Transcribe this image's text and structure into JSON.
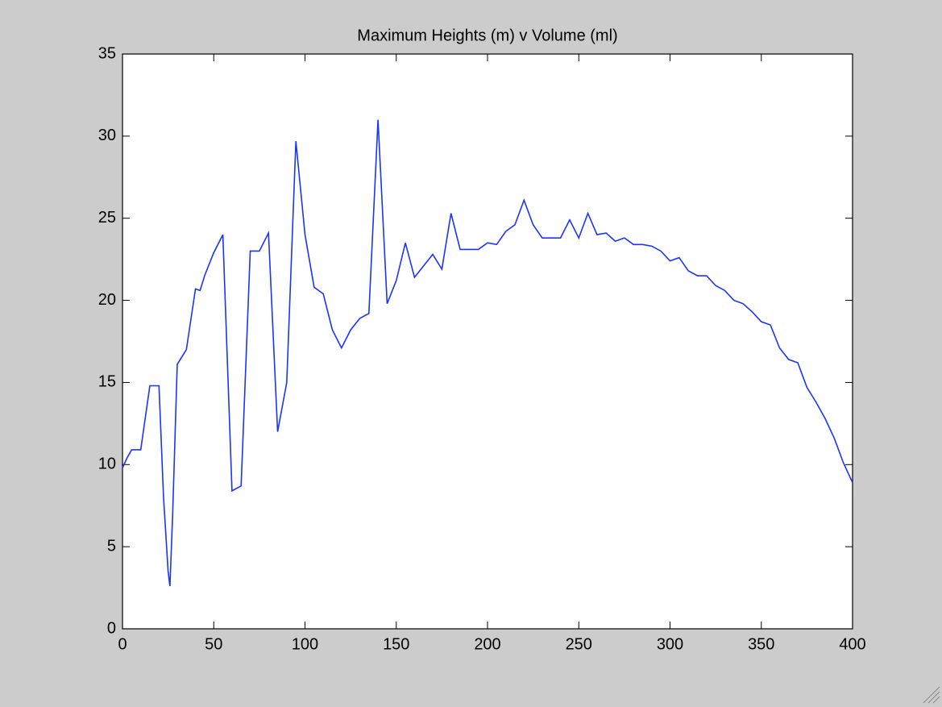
{
  "chart_data": {
    "type": "line",
    "title": "Maximum Heights (m) v Volume (ml)",
    "x": [
      0,
      2.5,
      5,
      10,
      15,
      20,
      22.5,
      25,
      26,
      27.5,
      30,
      35,
      40,
      42.5,
      45,
      50,
      55,
      60,
      65,
      70,
      75,
      80,
      85,
      90,
      95,
      100,
      105,
      110,
      115,
      120,
      125,
      130,
      135,
      140,
      145,
      150,
      155,
      160,
      165,
      170,
      175,
      180,
      185,
      190,
      195,
      200,
      205,
      210,
      215,
      220,
      225,
      230,
      235,
      240,
      245,
      250,
      255,
      260,
      265,
      270,
      275,
      280,
      285,
      290,
      295,
      300,
      305,
      310,
      315,
      320,
      325,
      330,
      335,
      340,
      345,
      350,
      355,
      360,
      365,
      370,
      375,
      380,
      385,
      390,
      395,
      400
    ],
    "series": [
      {
        "name": "Maximum Height",
        "color": "#1a33ff",
        "values": [
          9.8,
          10.4,
          10.9,
          10.9,
          14.8,
          14.8,
          8,
          3.5,
          2.6,
          7,
          16.1,
          17,
          20.7,
          20.6,
          21.5,
          22.9,
          24,
          8.4,
          8.7,
          23,
          23,
          24.1,
          12,
          15,
          29.7,
          24,
          20.8,
          20.4,
          18.2,
          17.1,
          18.2,
          18.9,
          19.2,
          31,
          19.8,
          21.2,
          23.5,
          21.4,
          22.1,
          22.8,
          21.9,
          25.3,
          23.1,
          23.1,
          23.1,
          23.5,
          23.4,
          24.2,
          24.6,
          26.1,
          24.6,
          23.8,
          23.8,
          23.8,
          24.9,
          23.8,
          25.3,
          24,
          24.1,
          23.6,
          23.8,
          23.4,
          23.4,
          23.3,
          23,
          22.4,
          22.6,
          21.8,
          21.5,
          21.5,
          20.9,
          20.6,
          20,
          19.8,
          19.3,
          18.7,
          18.5,
          17.1,
          16.4,
          16.2,
          14.7,
          13.8,
          12.8,
          11.6,
          10.1,
          8.9
        ]
      }
    ],
    "xlim": [
      0,
      400
    ],
    "xticks": [
      0,
      50,
      100,
      150,
      200,
      250,
      300,
      350,
      400
    ],
    "ylim": [
      0,
      35
    ],
    "yticks": [
      0,
      5,
      10,
      15,
      20,
      25,
      30,
      35
    ],
    "grid": false
  }
}
